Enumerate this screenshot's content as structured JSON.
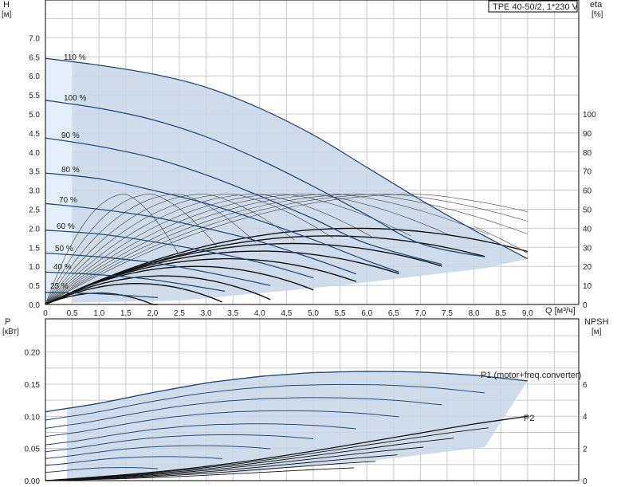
{
  "title": "TPE 40-50/2, 1*230 V",
  "colors": {
    "band": "#c8d6e5",
    "band_light": "#e3eefa",
    "curve_blue": "#244c7a",
    "curve_black": "#111111",
    "curve_thin": "#444444",
    "label_blue": "#3a6ea0",
    "grid": "#c8c8c8"
  },
  "chart_data": [
    {
      "type": "line",
      "name": "head-chart",
      "axes": {
        "x": {
          "label": "Q [м³/ч]",
          "ticks": [
            "0",
            "0,5",
            "1,0",
            "1,5",
            "2,0",
            "2,5",
            "3,0",
            "3,5",
            "4,0",
            "4,5",
            "5,0",
            "5,5",
            "6,0",
            "6,5",
            "7,0",
            "7,5",
            "8,0",
            "8,5",
            "9,0"
          ],
          "range": [
            0,
            9.5
          ]
        },
        "y_left": {
          "label_top": "H",
          "label_unit": "[м]",
          "ticks": [
            "0.0",
            "0.5",
            "1.0",
            "1.5",
            "2.0",
            "2.5",
            "3.0",
            "3.5",
            "4.0",
            "4.5",
            "5.0",
            "5.5",
            "6.0",
            "6.5",
            "7.0"
          ],
          "range": [
            0,
            7.5
          ]
        },
        "y_right": {
          "label_top": "eta",
          "label_unit": "[%]",
          "ticks": [
            "0",
            "10",
            "20",
            "30",
            "40",
            "50",
            "60",
            "70",
            "80",
            "90",
            "100"
          ],
          "range": [
            0,
            143
          ]
        }
      },
      "speed_labels": [
        "110 %",
        "100 %",
        "90 %",
        "80 %",
        "70 %",
        "60 %",
        "50 %",
        "40 %",
        "25 %"
      ],
      "series": [
        {
          "name": "110 %",
          "x": [
            0,
            1.0,
            2.0,
            3.0,
            4.0,
            5.0,
            6.0,
            7.0,
            8.0,
            9.0
          ],
          "y": [
            6.46,
            6.28,
            6.05,
            5.7,
            5.15,
            4.45,
            3.6,
            2.75,
            1.95,
            1.2
          ]
        },
        {
          "name": "100 %",
          "x": [
            0,
            1.0,
            2.0,
            3.0,
            4.0,
            5.0,
            6.0,
            7.0,
            8.2
          ],
          "y": [
            5.36,
            5.15,
            4.85,
            4.4,
            3.8,
            3.1,
            2.35,
            1.6,
            1.25
          ]
        },
        {
          "name": "90 %",
          "x": [
            0,
            1.0,
            2.0,
            3.0,
            4.0,
            5.0,
            6.0,
            7.4
          ],
          "y": [
            4.37,
            4.15,
            3.85,
            3.4,
            2.85,
            2.25,
            1.6,
            1.05
          ]
        },
        {
          "name": "80 %",
          "x": [
            0,
            1.0,
            2.0,
            3.0,
            4.0,
            5.0,
            6.0,
            6.6
          ],
          "y": [
            3.45,
            3.3,
            3.0,
            2.65,
            2.2,
            1.7,
            1.15,
            0.85
          ]
        },
        {
          "name": "70 %",
          "x": [
            0,
            1.0,
            2.0,
            3.0,
            4.0,
            5.0,
            5.8
          ],
          "y": [
            2.65,
            2.5,
            2.3,
            2.0,
            1.65,
            1.2,
            0.8
          ]
        },
        {
          "name": "60 %",
          "x": [
            0,
            1.0,
            2.0,
            3.0,
            4.0,
            5.0
          ],
          "y": [
            1.95,
            1.85,
            1.65,
            1.4,
            1.1,
            0.7
          ]
        },
        {
          "name": "50 %",
          "x": [
            0,
            1.0,
            2.0,
            3.0,
            4.2
          ],
          "y": [
            1.35,
            1.25,
            1.1,
            0.85,
            0.5
          ]
        },
        {
          "name": "40 %",
          "x": [
            0,
            1.0,
            2.0,
            3.35
          ],
          "y": [
            0.85,
            0.78,
            0.65,
            0.35
          ]
        },
        {
          "name": "25 %",
          "x": [
            0,
            1.0,
            2.1
          ],
          "y": [
            0.32,
            0.28,
            0.18
          ]
        }
      ]
    },
    {
      "type": "line",
      "name": "power-chart",
      "axes": {
        "x": {
          "range": [
            0,
            9.5
          ]
        },
        "y_left": {
          "label_top": "P",
          "label_unit": "[кВт]",
          "ticks": [
            "0.00",
            "0.05",
            "0.10",
            "0.15",
            "0.20"
          ],
          "range": [
            0,
            0.2
          ]
        },
        "y_right": {
          "label_top": "NPSH",
          "label_unit": "[м]",
          "ticks": [
            "0",
            "2",
            "4",
            "6"
          ],
          "range": [
            0,
            8
          ]
        }
      },
      "annotations": [
        "P1 (motor+freq.converter)",
        "P2"
      ],
      "series": [
        {
          "name": "P1 (motor+freq.converter)",
          "x": [
            0,
            1.0,
            2.0,
            3.0,
            4.0,
            5.0,
            6.0,
            7.0,
            8.0,
            9.0
          ],
          "y": [
            0.107,
            0.12,
            0.137,
            0.152,
            0.162,
            0.168,
            0.17,
            0.169,
            0.164,
            0.155
          ]
        },
        {
          "name": "P2",
          "x": [
            0,
            1.0,
            2.0,
            3.0,
            4.0,
            5.0,
            6.0,
            7.0,
            8.0,
            9.0
          ],
          "y": [
            0.0,
            0.006,
            0.013,
            0.022,
            0.033,
            0.046,
            0.06,
            0.074,
            0.088,
            0.1
          ]
        }
      ]
    }
  ]
}
